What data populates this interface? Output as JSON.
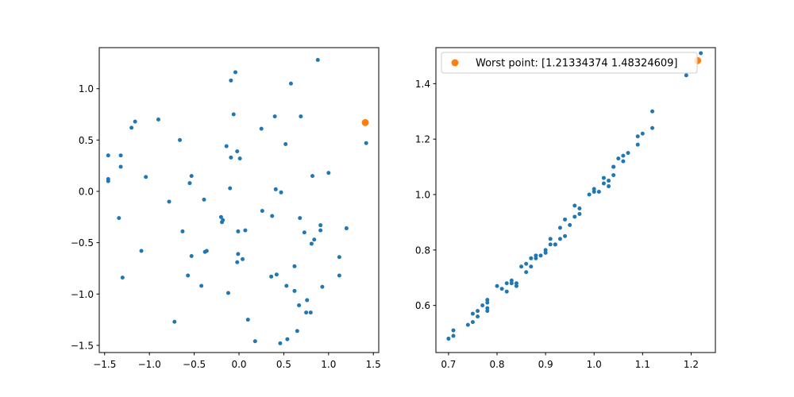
{
  "colors": {
    "series": "#1f77b4",
    "highlight": "#ff7f0e",
    "axis": "#000000",
    "background": "#ffffff"
  },
  "chart_data": [
    {
      "type": "scatter",
      "title": "",
      "xlabel": "",
      "ylabel": "",
      "xlim": [
        -1.56,
        1.56
      ],
      "ylim": [
        -1.57,
        1.4
      ],
      "xticks": [
        -1.5,
        -1.0,
        -0.5,
        0.0,
        0.5,
        1.0,
        1.5
      ],
      "xtick_labels": [
        "−1.5",
        "−1.0",
        "−0.5",
        "0.0",
        "0.5",
        "1.0",
        "1.5"
      ],
      "yticks": [
        -1.5,
        -1.0,
        -0.5,
        0.0,
        0.5,
        1.0
      ],
      "ytick_labels": [
        "−1.5",
        "−1.0",
        "−0.5",
        "0.0",
        "0.5",
        "1.0"
      ],
      "grid": false,
      "legend": false,
      "series": [
        {
          "points": [
            [
              -1.46,
              0.35
            ],
            [
              -1.46,
              0.12
            ],
            [
              -1.46,
              0.1
            ],
            [
              -1.32,
              0.35
            ],
            [
              -1.32,
              0.24
            ],
            [
              -1.34,
              -0.26
            ],
            [
              -1.3,
              -0.84
            ],
            [
              -1.2,
              0.62
            ],
            [
              -1.16,
              0.68
            ],
            [
              -1.09,
              -0.58
            ],
            [
              -1.04,
              0.14
            ],
            [
              -0.9,
              0.7
            ],
            [
              -0.78,
              -0.1
            ],
            [
              -0.72,
              -1.27
            ],
            [
              -0.66,
              0.5
            ],
            [
              -0.63,
              -0.39
            ],
            [
              -0.57,
              -0.82
            ],
            [
              -0.55,
              0.08
            ],
            [
              -0.53,
              0.15
            ],
            [
              -0.53,
              -0.63
            ],
            [
              -0.42,
              -0.92
            ],
            [
              -0.39,
              -0.08
            ],
            [
              -0.38,
              -0.59
            ],
            [
              -0.36,
              -0.58
            ],
            [
              -0.2,
              -0.25
            ],
            [
              -0.19,
              -0.3
            ],
            [
              -0.18,
              -0.28
            ],
            [
              -0.14,
              0.44
            ],
            [
              -0.12,
              -0.99
            ],
            [
              -0.1,
              0.03
            ],
            [
              -0.09,
              1.08
            ],
            [
              -0.09,
              0.33
            ],
            [
              -0.06,
              0.75
            ],
            [
              -0.04,
              1.16
            ],
            [
              -0.02,
              0.39
            ],
            [
              -0.02,
              -0.69
            ],
            [
              -0.01,
              -0.61
            ],
            [
              -0.01,
              -0.39
            ],
            [
              0.01,
              0.32
            ],
            [
              0.04,
              -0.66
            ],
            [
              0.07,
              -0.38
            ],
            [
              0.1,
              -1.25
            ],
            [
              0.18,
              -1.46
            ],
            [
              0.25,
              0.61
            ],
            [
              0.26,
              -0.19
            ],
            [
              0.36,
              -0.83
            ],
            [
              0.37,
              -0.24
            ],
            [
              0.4,
              0.73
            ],
            [
              0.41,
              0.02
            ],
            [
              0.42,
              -0.81
            ],
            [
              0.46,
              -1.48
            ],
            [
              0.47,
              -0.01
            ],
            [
              0.52,
              0.46
            ],
            [
              0.53,
              -0.92
            ],
            [
              0.54,
              -1.44
            ],
            [
              0.58,
              1.05
            ],
            [
              0.62,
              -0.73
            ],
            [
              0.62,
              -0.97
            ],
            [
              0.65,
              -1.36
            ],
            [
              0.67,
              -1.11
            ],
            [
              0.68,
              -0.26
            ],
            [
              0.69,
              0.73
            ],
            [
              0.73,
              -0.4
            ],
            [
              0.75,
              -1.18
            ],
            [
              0.76,
              -1.06
            ],
            [
              0.8,
              -1.18
            ],
            [
              0.81,
              -0.51
            ],
            [
              0.82,
              0.15
            ],
            [
              0.84,
              -0.47
            ],
            [
              0.88,
              1.28
            ],
            [
              0.91,
              -0.33
            ],
            [
              0.91,
              -0.38
            ],
            [
              0.93,
              -0.93
            ],
            [
              1.0,
              0.18
            ],
            [
              1.12,
              -0.64
            ],
            [
              1.12,
              -0.82
            ],
            [
              1.2,
              -0.36
            ],
            [
              1.42,
              0.47
            ]
          ]
        },
        {
          "highlight": true,
          "points": [
            [
              1.41,
              0.67
            ]
          ]
        }
      ]
    },
    {
      "type": "scatter",
      "title": "",
      "xlabel": "",
      "ylabel": "",
      "xlim": [
        0.674,
        1.25
      ],
      "ylim": [
        0.43,
        1.53
      ],
      "xticks": [
        0.7,
        0.8,
        0.9,
        1.0,
        1.1,
        1.2
      ],
      "xtick_labels": [
        "0.7",
        "0.8",
        "0.9",
        "1.0",
        "1.1",
        "1.2"
      ],
      "yticks": [
        0.6,
        0.8,
        1.0,
        1.2,
        1.4
      ],
      "ytick_labels": [
        "0.6",
        "0.8",
        "1.0",
        "1.2",
        "1.4"
      ],
      "grid": false,
      "legend": true,
      "legend_position": "top",
      "series": [
        {
          "points": [
            [
              0.7,
              0.48
            ],
            [
              0.71,
              0.49
            ],
            [
              0.71,
              0.51
            ],
            [
              0.74,
              0.53
            ],
            [
              0.75,
              0.54
            ],
            [
              0.75,
              0.57
            ],
            [
              0.76,
              0.58
            ],
            [
              0.76,
              0.56
            ],
            [
              0.77,
              0.6
            ],
            [
              0.78,
              0.61
            ],
            [
              0.78,
              0.62
            ],
            [
              0.78,
              0.59
            ],
            [
              0.78,
              0.58
            ],
            [
              0.8,
              0.67
            ],
            [
              0.81,
              0.66
            ],
            [
              0.82,
              0.68
            ],
            [
              0.82,
              0.65
            ],
            [
              0.83,
              0.68
            ],
            [
              0.83,
              0.69
            ],
            [
              0.84,
              0.68
            ],
            [
              0.84,
              0.67
            ],
            [
              0.85,
              0.74
            ],
            [
              0.86,
              0.72
            ],
            [
              0.86,
              0.75
            ],
            [
              0.87,
              0.77
            ],
            [
              0.87,
              0.74
            ],
            [
              0.88,
              0.77
            ],
            [
              0.88,
              0.78
            ],
            [
              0.89,
              0.78
            ],
            [
              0.9,
              0.8
            ],
            [
              0.9,
              0.79
            ],
            [
              0.91,
              0.84
            ],
            [
              0.91,
              0.82
            ],
            [
              0.92,
              0.82
            ],
            [
              0.92,
              0.82
            ],
            [
              0.93,
              0.88
            ],
            [
              0.93,
              0.84
            ],
            [
              0.94,
              0.85
            ],
            [
              0.94,
              0.91
            ],
            [
              0.95,
              0.89
            ],
            [
              0.96,
              0.92
            ],
            [
              0.96,
              0.96
            ],
            [
              0.97,
              0.93
            ],
            [
              0.97,
              0.95
            ],
            [
              0.99,
              1.0
            ],
            [
              1.0,
              1.02
            ],
            [
              1.0,
              1.01
            ],
            [
              1.01,
              1.01
            ],
            [
              1.02,
              1.06
            ],
            [
              1.02,
              1.04
            ],
            [
              1.03,
              1.03
            ],
            [
              1.03,
              1.05
            ],
            [
              1.04,
              1.07
            ],
            [
              1.04,
              1.1
            ],
            [
              1.04,
              1.1
            ],
            [
              1.05,
              1.13
            ],
            [
              1.06,
              1.12
            ],
            [
              1.06,
              1.14
            ],
            [
              1.07,
              1.15
            ],
            [
              1.09,
              1.18
            ],
            [
              1.09,
              1.21
            ],
            [
              1.1,
              1.22
            ],
            [
              1.12,
              1.24
            ],
            [
              1.12,
              1.3
            ],
            [
              1.19,
              1.43
            ],
            [
              1.22,
              1.51
            ]
          ]
        },
        {
          "name": "Worst point: [1.21334374 1.48324609]",
          "highlight": true,
          "points": [
            [
              1.21334374,
              1.48324609
            ]
          ]
        }
      ]
    }
  ]
}
